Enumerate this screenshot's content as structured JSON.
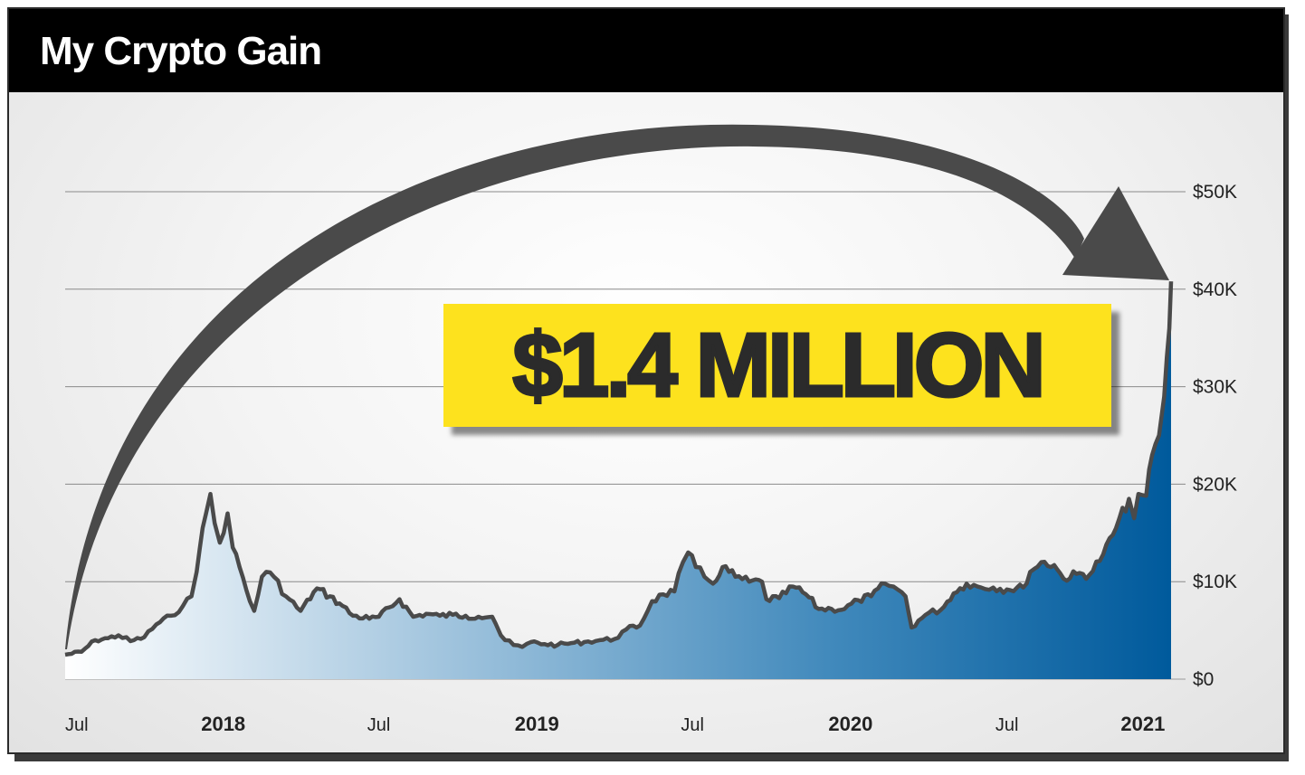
{
  "header": {
    "title": "My Crypto Gain"
  },
  "callout": {
    "text": "$1.4 MILLION"
  },
  "colors": {
    "line": "#4a4a4a",
    "area_dark": "#005a9c",
    "area_light": "#ffffff",
    "callout_bg": "#fde21e",
    "arrow": "#4a4a4a"
  },
  "chart_data": {
    "type": "area",
    "title": "My Crypto Gain",
    "annotation": "$1.4 MILLION",
    "y_axis": {
      "position": "right",
      "ylim": [
        0,
        50000
      ],
      "ticks": [
        "$0",
        "$10K",
        "$20K",
        "$30K",
        "$40K",
        "$50K"
      ],
      "tick_values": [
        0,
        10000,
        20000,
        30000,
        40000,
        50000
      ]
    },
    "x_axis": {
      "ticks": [
        "Jul",
        "2018",
        "Jul",
        "2019",
        "Jul",
        "2020",
        "Jul",
        "2021"
      ],
      "tick_dates": [
        "2017-07-01",
        "2018-01-01",
        "2018-07-01",
        "2019-01-01",
        "2019-07-01",
        "2020-01-01",
        "2020-07-01",
        "2021-01-01"
      ],
      "bold_ticks": [
        "2018",
        "2019",
        "2020",
        "2021"
      ]
    },
    "xlim": [
      "2017-07-01",
      "2021-01-08"
    ],
    "grid": true,
    "series": [
      {
        "x": [
          "2017-07-01",
          "2017-07-20",
          "2017-08-05",
          "2017-08-20",
          "2017-09-01",
          "2017-09-15",
          "2017-10-01",
          "2017-10-15",
          "2017-11-01",
          "2017-11-15",
          "2017-11-25",
          "2017-12-01",
          "2017-12-08",
          "2017-12-12",
          "2017-12-17",
          "2017-12-22",
          "2017-12-28",
          "2018-01-06",
          "2018-01-12",
          "2018-01-20",
          "2018-02-01",
          "2018-02-06",
          "2018-02-15",
          "2018-02-20",
          "2018-03-01",
          "2018-03-15",
          "2018-04-01",
          "2018-04-20",
          "2018-05-05",
          "2018-05-20",
          "2018-06-01",
          "2018-06-20",
          "2018-07-01",
          "2018-07-25",
          "2018-08-10",
          "2018-08-25",
          "2018-09-10",
          "2018-09-25",
          "2018-10-10",
          "2018-10-25",
          "2018-11-10",
          "2018-11-14",
          "2018-11-20",
          "2018-11-25",
          "2018-12-05",
          "2018-12-15",
          "2018-12-25",
          "2019-01-10",
          "2019-01-25",
          "2019-02-10",
          "2019-02-25",
          "2019-03-15",
          "2019-04-01",
          "2019-04-15",
          "2019-05-01",
          "2019-05-15",
          "2019-05-28",
          "2019-06-10",
          "2019-06-20",
          "2019-06-26",
          "2019-07-05",
          "2019-07-15",
          "2019-07-25",
          "2019-08-05",
          "2019-08-20",
          "2019-09-05",
          "2019-09-20",
          "2019-09-25",
          "2019-10-10",
          "2019-10-26",
          "2019-11-10",
          "2019-11-25",
          "2019-12-10",
          "2019-12-25",
          "2020-01-10",
          "2020-01-25",
          "2020-02-10",
          "2020-02-20",
          "2020-03-05",
          "2020-03-12",
          "2020-03-20",
          "2020-04-01",
          "2020-04-15",
          "2020-04-30",
          "2020-05-15",
          "2020-06-01",
          "2020-06-15",
          "2020-07-01",
          "2020-07-20",
          "2020-07-28",
          "2020-08-10",
          "2020-08-25",
          "2020-09-05",
          "2020-09-20",
          "2020-10-05",
          "2020-10-21",
          "2020-11-05",
          "2020-11-20",
          "2020-11-26",
          "2020-12-01",
          "2020-12-10",
          "2020-12-17",
          "2020-12-25",
          "2020-12-31",
          "2021-01-03",
          "2021-01-06",
          "2021-01-08"
        ],
        "y": [
          2500,
          2800,
          4000,
          4200,
          4500,
          3900,
          4300,
          5600,
          6500,
          7500,
          8500,
          11000,
          15500,
          17000,
          19000,
          16000,
          14000,
          17000,
          13500,
          11500,
          8000,
          7000,
          10500,
          11000,
          10500,
          8500,
          7000,
          9300,
          8500,
          7500,
          6500,
          6200,
          6400,
          8200,
          6400,
          6700,
          6500,
          6600,
          6500,
          6400,
          6400,
          5700,
          4500,
          4000,
          3500,
          3300,
          3800,
          3600,
          3500,
          3700,
          3800,
          4000,
          4100,
          5100,
          5500,
          8000,
          8700,
          9000,
          12000,
          13000,
          11500,
          10500,
          9800,
          11500,
          10500,
          10000,
          10000,
          8200,
          8300,
          9500,
          8700,
          7200,
          7200,
          7200,
          8100,
          8500,
          9800,
          9500,
          8500,
          5300,
          6000,
          6800,
          7100,
          8800,
          9800,
          9400,
          9400,
          9200,
          9400,
          11000,
          12000,
          11700,
          10300,
          10800,
          10700,
          12800,
          15500,
          18500,
          16500,
          19000,
          18800,
          23000,
          25000,
          29000,
          33000,
          36000,
          40800
        ]
      }
    ]
  }
}
